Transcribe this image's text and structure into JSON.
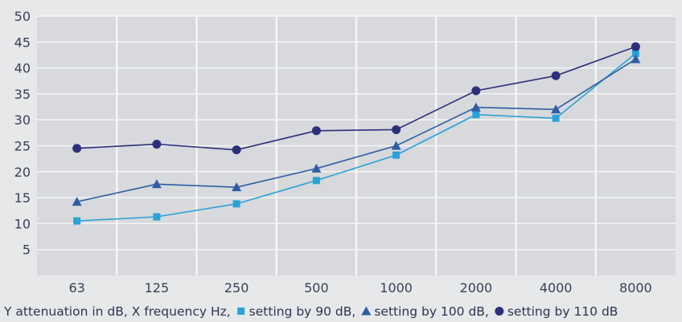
{
  "chart_data": {
    "type": "line",
    "categories": [
      "63",
      "125",
      "250",
      "500",
      "1000",
      "2000",
      "4000",
      "8000"
    ],
    "ylim": [
      0,
      50
    ],
    "yticks": [
      "5",
      "10",
      "15",
      "20",
      "25",
      "30",
      "35",
      "40",
      "45",
      "50"
    ],
    "grid": true,
    "caption": {
      "prefix": "Y attenuation in dB, X frequency Hz,",
      "legend": [
        {
          "symbol": "square",
          "text": "setting by 90 dB,"
        },
        {
          "symbol": "triangle",
          "text": "setting by 100 dB,"
        },
        {
          "symbol": "circle",
          "text": "setting by 110 dB"
        }
      ]
    },
    "series": [
      {
        "marker": "square",
        "color": "#2aa2d8",
        "values": [
          10.5,
          11.3,
          13.8,
          18.3,
          23.2,
          31.0,
          30.3,
          42.8
        ]
      },
      {
        "marker": "triangle",
        "color": "#2f5da2",
        "values": [
          14.2,
          17.6,
          17.0,
          20.6,
          25.0,
          32.4,
          32.0,
          41.7
        ]
      },
      {
        "marker": "circle",
        "color": "#2e2f7c",
        "values": [
          24.5,
          25.3,
          24.2,
          27.9,
          28.1,
          35.6,
          38.5,
          44.1
        ]
      }
    ],
    "colors": {
      "background": "#e6e8ea",
      "plot": "#d7d9dc",
      "grid": "#f4f5f6",
      "text": "#3a3f55"
    }
  }
}
